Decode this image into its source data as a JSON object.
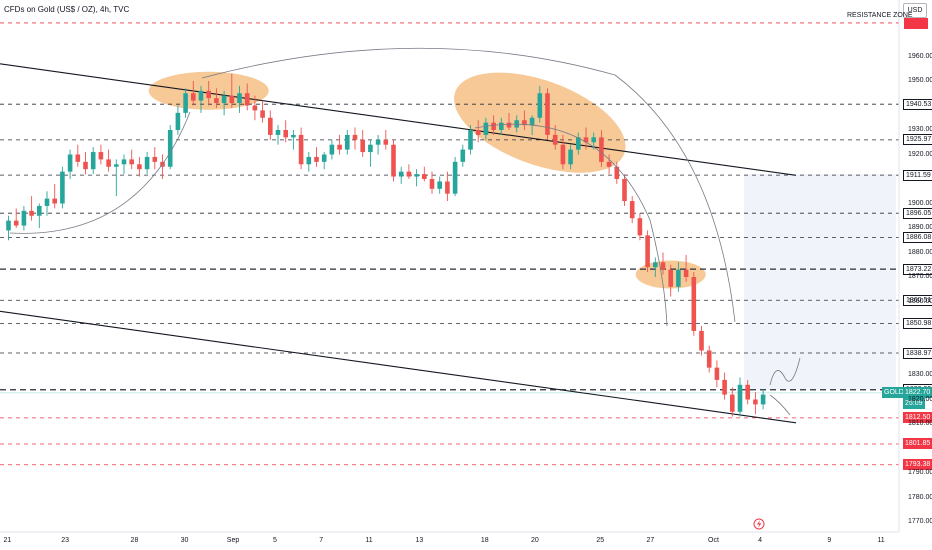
{
  "header": {
    "symbol_title": "CFDs on Gold (US$ / OZ), 4h, TVC",
    "currency": "USD"
  },
  "chart_data": {
    "type": "candlestick",
    "title": "CFDs on Gold (US$ / OZ), 4h, TVC",
    "ylim": [
      1766,
      1978
    ],
    "y_ticks": [
      "1960.00",
      "1950.00",
      "1930.00",
      "1920.00",
      "1900.00",
      "1890.00",
      "1880.00",
      "1870.00",
      "1860.00",
      "1830.00",
      "1820.00",
      "1810.00",
      "1790.00",
      "1780.00",
      "1770.00"
    ],
    "x_ticks": [
      {
        "label": "21",
        "col": 0
      },
      {
        "label": "23",
        "col": 7.5
      },
      {
        "label": "28",
        "col": 16.5
      },
      {
        "label": "30",
        "col": 23
      },
      {
        "label": "Sep",
        "col": 29
      },
      {
        "label": "5",
        "col": 35
      },
      {
        "label": "7",
        "col": 41
      },
      {
        "label": "11",
        "col": 47
      },
      {
        "label": "13",
        "col": 53.5
      },
      {
        "label": "18",
        "col": 62
      },
      {
        "label": "20",
        "col": 68.5
      },
      {
        "label": "25",
        "col": 77
      },
      {
        "label": "27",
        "col": 83.5
      },
      {
        "label": "Oct",
        "col": 91.5
      },
      {
        "label": "4",
        "col": 98
      },
      {
        "label": "9",
        "col": 107
      },
      {
        "label": "11",
        "col": 113.5
      }
    ],
    "candles": [
      [
        1889,
        1895,
        1885,
        1893
      ],
      [
        1893,
        1898,
        1890,
        1891
      ],
      [
        1891,
        1899,
        1889,
        1897
      ],
      [
        1897,
        1903,
        1893,
        1895
      ],
      [
        1895,
        1900,
        1890,
        1899
      ],
      [
        1899,
        1905,
        1895,
        1902
      ],
      [
        1902,
        1908,
        1898,
        1900
      ],
      [
        1900,
        1915,
        1898,
        1913
      ],
      [
        1913,
        1922,
        1910,
        1920
      ],
      [
        1920,
        1924,
        1915,
        1917
      ],
      [
        1917,
        1921,
        1912,
        1914
      ],
      [
        1914,
        1923,
        1912,
        1921
      ],
      [
        1921,
        1924,
        1916,
        1918
      ],
      [
        1918,
        1922,
        1913,
        1915
      ],
      [
        1915,
        1918,
        1903,
        1916
      ],
      [
        1916,
        1920,
        1912,
        1918
      ],
      [
        1918,
        1922,
        1914,
        1916
      ],
      [
        1916,
        1919,
        1911,
        1914
      ],
      [
        1914,
        1921,
        1912,
        1919
      ],
      [
        1919,
        1923,
        1914,
        1917
      ],
      [
        1917,
        1920,
        1910,
        1915
      ],
      [
        1915,
        1932,
        1914,
        1930
      ],
      [
        1930,
        1940,
        1928,
        1937
      ],
      [
        1937,
        1947,
        1935,
        1945
      ],
      [
        1945,
        1950,
        1940,
        1942
      ],
      [
        1942,
        1948,
        1937,
        1946
      ],
      [
        1946,
        1950,
        1940,
        1943
      ],
      [
        1943,
        1947,
        1939,
        1941
      ],
      [
        1941,
        1946,
        1936,
        1944
      ],
      [
        1944,
        1953,
        1939,
        1941
      ],
      [
        1941,
        1948,
        1937,
        1945
      ],
      [
        1945,
        1949,
        1938,
        1940
      ],
      [
        1940,
        1944,
        1934,
        1938
      ],
      [
        1938,
        1942,
        1933,
        1935
      ],
      [
        1935,
        1938,
        1926,
        1928
      ],
      [
        1928,
        1932,
        1924,
        1930
      ],
      [
        1930,
        1934,
        1925,
        1927
      ],
      [
        1927,
        1930,
        1922,
        1928
      ],
      [
        1928,
        1931,
        1914,
        1916
      ],
      [
        1916,
        1921,
        1913,
        1919
      ],
      [
        1919,
        1923,
        1915,
        1917
      ],
      [
        1917,
        1921,
        1914,
        1920
      ],
      [
        1920,
        1926,
        1918,
        1924
      ],
      [
        1924,
        1928,
        1920,
        1922
      ],
      [
        1922,
        1930,
        1920,
        1928
      ],
      [
        1928,
        1931,
        1922,
        1926
      ],
      [
        1926,
        1930,
        1919,
        1921
      ],
      [
        1921,
        1926,
        1915,
        1924
      ],
      [
        1924,
        1928,
        1920,
        1926
      ],
      [
        1926,
        1930,
        1922,
        1924
      ],
      [
        1924,
        1926,
        1909,
        1911
      ],
      [
        1911,
        1915,
        1908,
        1913
      ],
      [
        1913,
        1916,
        1910,
        1911
      ],
      [
        1911,
        1914,
        1907,
        1912
      ],
      [
        1912,
        1915,
        1909,
        1910
      ],
      [
        1910,
        1913,
        1904,
        1906
      ],
      [
        1906,
        1911,
        1904,
        1909
      ],
      [
        1909,
        1913,
        1901,
        1904
      ],
      [
        1904,
        1919,
        1903,
        1917
      ],
      [
        1917,
        1924,
        1915,
        1922
      ],
      [
        1922,
        1932,
        1920,
        1930
      ],
      [
        1930,
        1934,
        1925,
        1928
      ],
      [
        1928,
        1935,
        1926,
        1933
      ],
      [
        1933,
        1936,
        1928,
        1930
      ],
      [
        1930,
        1935,
        1928,
        1933
      ],
      [
        1933,
        1937,
        1930,
        1931
      ],
      [
        1931,
        1936,
        1929,
        1934
      ],
      [
        1934,
        1938,
        1930,
        1932
      ],
      [
        1932,
        1936,
        1928,
        1935
      ],
      [
        1935,
        1948,
        1933,
        1945
      ],
      [
        1945,
        1947,
        1926,
        1928
      ],
      [
        1928,
        1932,
        1922,
        1924
      ],
      [
        1924,
        1928,
        1914,
        1916
      ],
      [
        1916,
        1924,
        1914,
        1922
      ],
      [
        1922,
        1929,
        1920,
        1927
      ],
      [
        1927,
        1931,
        1922,
        1925
      ],
      [
        1925,
        1929,
        1922,
        1927
      ],
      [
        1927,
        1930,
        1915,
        1917
      ],
      [
        1917,
        1920,
        1912,
        1915
      ],
      [
        1915,
        1917,
        1908,
        1910
      ],
      [
        1910,
        1912,
        1899,
        1901
      ],
      [
        1901,
        1903,
        1892,
        1894
      ],
      [
        1894,
        1896,
        1885,
        1887
      ],
      [
        1887,
        1889,
        1872,
        1874
      ],
      [
        1874,
        1878,
        1870,
        1876
      ],
      [
        1876,
        1880,
        1871,
        1873
      ],
      [
        1873,
        1875,
        1862,
        1866
      ],
      [
        1866,
        1876,
        1864,
        1873
      ],
      [
        1873,
        1879,
        1868,
        1870
      ],
      [
        1870,
        1872,
        1846,
        1848
      ],
      [
        1848,
        1850,
        1838,
        1840
      ],
      [
        1840,
        1842,
        1831,
        1833
      ],
      [
        1833,
        1836,
        1825,
        1828
      ],
      [
        1828,
        1831,
        1820,
        1822
      ],
      [
        1822,
        1825,
        1813,
        1815
      ],
      [
        1815,
        1829,
        1813,
        1826
      ],
      [
        1826,
        1828,
        1818,
        1820
      ],
      [
        1820,
        1823,
        1814,
        1818
      ],
      [
        1818,
        1824,
        1816,
        1822
      ]
    ],
    "horizontal_levels": [
      {
        "value": 1973.7,
        "style": "red-dashed",
        "label": "RESISTANCE ZONE"
      },
      {
        "value": 1940.53,
        "style": "dark-dashed",
        "label": "1940.53"
      },
      {
        "value": 1925.97,
        "style": "dark-dashed",
        "label": "1925.97"
      },
      {
        "value": 1911.59,
        "style": "dark-dashed",
        "label": "1911.59"
      },
      {
        "value": 1896.05,
        "style": "dark-dashed",
        "label": "1896.05"
      },
      {
        "value": 1886.08,
        "style": "dark-dashed",
        "label": "1886.08"
      },
      {
        "value": 1873.22,
        "style": "dark-bold-dashed",
        "label": "1873.22"
      },
      {
        "value": 1860.51,
        "style": "dark-dashed",
        "label": "1860.51"
      },
      {
        "value": 1850.98,
        "style": "dark-dashed",
        "label": "1850.98"
      },
      {
        "value": 1838.97,
        "style": "dark-dashed",
        "label": "1838.97"
      },
      {
        "value": 1823.99,
        "style": "dark-bold-dashed",
        "label": "1823.99"
      },
      {
        "value": 1812.5,
        "style": "red-dashed",
        "label": "1812.50"
      },
      {
        "value": 1801.85,
        "style": "red-dashed",
        "label": "1801.85"
      },
      {
        "value": 1793.38,
        "style": "red-dashed",
        "label": "1793.38"
      }
    ],
    "current_price": {
      "label": "GOLD",
      "price": "1822.70",
      "countdown": "25:09",
      "value": 1822.7
    },
    "colors": {
      "up": "#26a69a",
      "down": "#ef5350",
      "zone": "#f4bf84",
      "price_tag": "#26a69a",
      "sell_tag": "#f23645",
      "level_dark": "#131722",
      "level_red": "#f23645"
    }
  }
}
